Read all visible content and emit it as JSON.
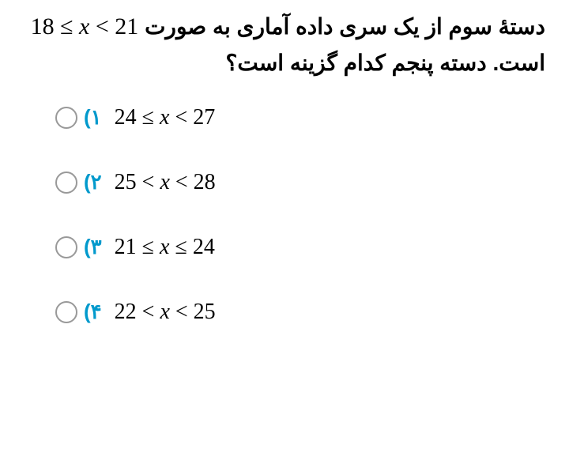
{
  "question": {
    "text_part1": "دستۀ سوم از یک سری داده آماری به صورت",
    "math": "18 ≤ x < 21",
    "text_part2": "است. دسته پنجم کدام گزینه است؟"
  },
  "options": [
    {
      "number": "۱)",
      "math": "24 ≤ x < 27"
    },
    {
      "number": "۲)",
      "math": "25 < x < 28"
    },
    {
      "number": "۳)",
      "math": "21 ≤ x ≤ 24"
    },
    {
      "number": "۴)",
      "math": "22 < x < 25"
    }
  ],
  "styling": {
    "question_fontsize": 28,
    "question_color": "#000000",
    "option_number_color": "#0099cc",
    "option_math_fontsize": 28,
    "radio_border_color": "#999999",
    "background_color": "#ffffff"
  }
}
